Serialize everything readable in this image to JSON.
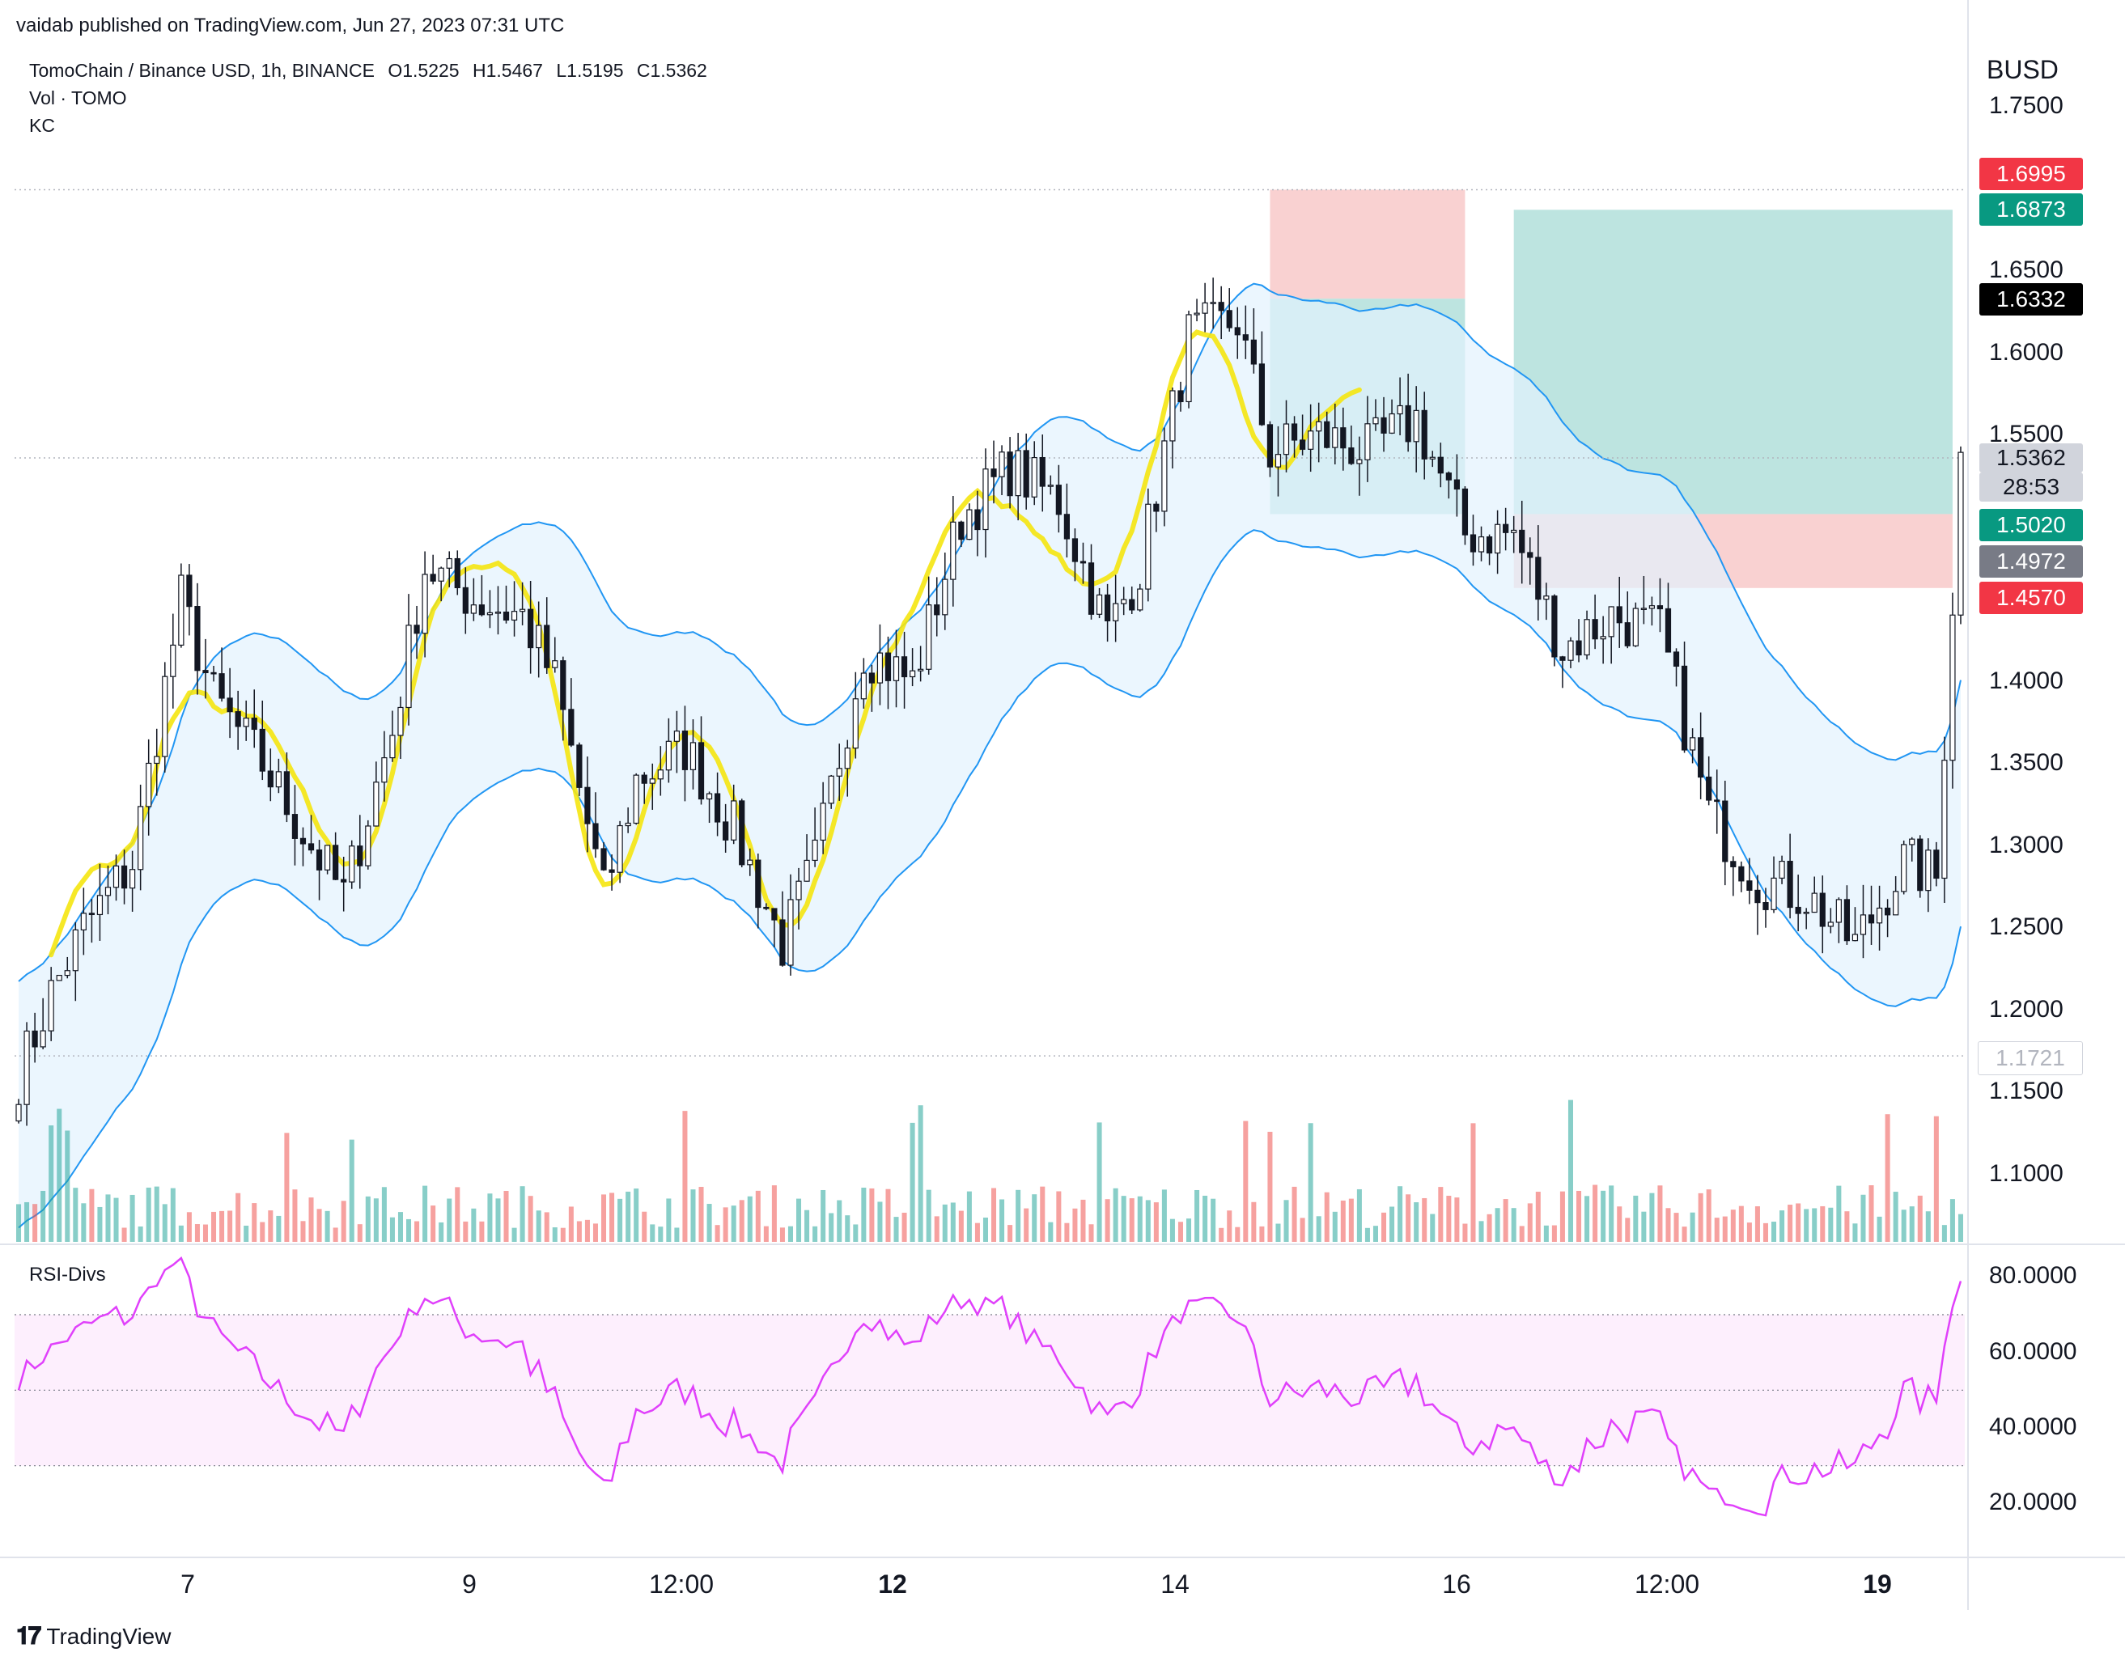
{
  "publisher_line": "vaidab published on TradingView.com, Jun 27, 2023 07:31 UTC",
  "legend": {
    "symbol": "TomoChain / Binance USD, 1h, BINANCE",
    "open": "O1.5225",
    "high": "H1.5467",
    "low": "L1.5195",
    "close": "C1.5362",
    "vol": "Vol · TOMO",
    "kc": "KC"
  },
  "currency": "BUSD",
  "price_axis": [
    "1.7500",
    "1.6500",
    "1.6000",
    "1.5500",
    "1.4000",
    "1.3500",
    "1.3000",
    "1.2500",
    "1.2000",
    "1.1500",
    "1.1000"
  ],
  "price_tags": {
    "stop_top": "1.6995",
    "target_top": "1.6873",
    "entry_top": "1.6332",
    "last_price": "1.5362",
    "countdown": "28:53",
    "entry_bottom": "1.5020",
    "marker_mid": "1.4972",
    "stop_bottom": "1.4570",
    "low_marker": "1.1721"
  },
  "rsi_panel": {
    "title": "RSI-Divs",
    "axis": [
      "80.0000",
      "60.0000",
      "40.0000",
      "20.0000"
    ]
  },
  "time_axis": [
    {
      "label": "7",
      "bold": false
    },
    {
      "label": "9",
      "bold": false
    },
    {
      "label": "12:00",
      "bold": false
    },
    {
      "label": "12",
      "bold": true
    },
    {
      "label": "14",
      "bold": false
    },
    {
      "label": "16",
      "bold": false
    },
    {
      "label": "12:00",
      "bold": false
    },
    {
      "label": "19",
      "bold": true
    }
  ],
  "footer_brand": "TradingView",
  "colors": {
    "up": "#26a69a",
    "down": "#ef5350",
    "band": "#2196f3",
    "band_fill": "#e3f2fd",
    "sine": "#f5e50f",
    "rsi": "#e040fb",
    "rsi_bull": "#76ff03",
    "rsi_bear": "#ff1744",
    "long_fill": "#b2dfdb",
    "short_fill": "#f8c9c9"
  },
  "chart_data": {
    "type": "candlestick",
    "timeframe": "1h",
    "ylim": [
      1.15,
      1.75
    ],
    "anchor_prices": [
      {
        "t": 0,
        "p": 1.16
      },
      {
        "t": 4,
        "p": 1.21
      },
      {
        "t": 8,
        "p": 1.25
      },
      {
        "t": 14,
        "p": 1.29
      },
      {
        "t": 20,
        "p": 1.45
      },
      {
        "t": 24,
        "p": 1.39
      },
      {
        "t": 30,
        "p": 1.35
      },
      {
        "t": 36,
        "p": 1.3
      },
      {
        "t": 40,
        "p": 1.27
      },
      {
        "t": 46,
        "p": 1.37
      },
      {
        "t": 50,
        "p": 1.47
      },
      {
        "t": 56,
        "p": 1.45
      },
      {
        "t": 62,
        "p": 1.44
      },
      {
        "t": 66,
        "p": 1.4
      },
      {
        "t": 72,
        "p": 1.27
      },
      {
        "t": 76,
        "p": 1.34
      },
      {
        "t": 82,
        "p": 1.36
      },
      {
        "t": 88,
        "p": 1.31
      },
      {
        "t": 94,
        "p": 1.24
      },
      {
        "t": 98,
        "p": 1.29
      },
      {
        "t": 104,
        "p": 1.42
      },
      {
        "t": 110,
        "p": 1.4
      },
      {
        "t": 116,
        "p": 1.5
      },
      {
        "t": 122,
        "p": 1.53
      },
      {
        "t": 128,
        "p": 1.51
      },
      {
        "t": 134,
        "p": 1.43
      },
      {
        "t": 138,
        "p": 1.47
      },
      {
        "t": 144,
        "p": 1.61
      },
      {
        "t": 150,
        "p": 1.62
      },
      {
        "t": 154,
        "p": 1.54
      },
      {
        "t": 160,
        "p": 1.55
      },
      {
        "t": 166,
        "p": 1.54
      },
      {
        "t": 172,
        "p": 1.56
      },
      {
        "t": 178,
        "p": 1.49
      },
      {
        "t": 184,
        "p": 1.49
      },
      {
        "t": 190,
        "p": 1.42
      },
      {
        "t": 196,
        "p": 1.44
      },
      {
        "t": 202,
        "p": 1.43
      },
      {
        "t": 208,
        "p": 1.32
      },
      {
        "t": 214,
        "p": 1.28
      },
      {
        "t": 220,
        "p": 1.27
      },
      {
        "t": 226,
        "p": 1.24
      },
      {
        "t": 232,
        "p": 1.29
      },
      {
        "t": 236,
        "p": 1.28
      },
      {
        "t": 239,
        "p": 1.536
      }
    ],
    "rsi_range": [
      10,
      85
    ],
    "rsi_levels": [
      70,
      50,
      30
    ],
    "positions": [
      {
        "type": "short",
        "entry": 1.6332,
        "stop": 1.6995,
        "target": 1.502
      },
      {
        "type": "long",
        "entry": 1.502,
        "stop": 1.457,
        "target": 1.6873
      }
    ]
  }
}
